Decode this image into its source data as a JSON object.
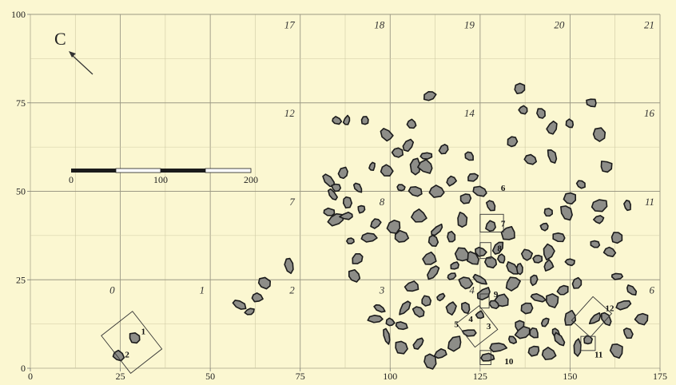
{
  "map": {
    "background": "#fbf7d1",
    "grid_color": "#cfcaa4",
    "major_line_color": "#9b9884",
    "feature_fill": "#8d8d88",
    "feature_outline": "#1b1b1b",
    "north_letter": "C",
    "x_ticks": [
      "0",
      "25",
      "50",
      "75",
      "100",
      "125",
      "150",
      "175"
    ],
    "y_ticks": [
      "0",
      "25",
      "50",
      "75",
      "100"
    ],
    "scale_bar": {
      "labels": [
        "0",
        "100",
        "200"
      ]
    },
    "grid_numbers": [
      {
        "id": "0",
        "x": 25,
        "y": 22
      },
      {
        "id": "1",
        "x": 50,
        "y": 22
      },
      {
        "id": "2",
        "x": 75,
        "y": 22
      },
      {
        "id": "3",
        "x": 100,
        "y": 22
      },
      {
        "id": "4",
        "x": 125,
        "y": 22
      },
      {
        "id": "6",
        "x": 175,
        "y": 22
      },
      {
        "id": "7",
        "x": 75,
        "y": 47
      },
      {
        "id": "8",
        "x": 100,
        "y": 47
      },
      {
        "id": "11",
        "x": 175,
        "y": 47
      },
      {
        "id": "12",
        "x": 75,
        "y": 72
      },
      {
        "id": "14",
        "x": 125,
        "y": 72
      },
      {
        "id": "16",
        "x": 175,
        "y": 72
      },
      {
        "id": "17",
        "x": 75,
        "y": 97
      },
      {
        "id": "18",
        "x": 100,
        "y": 97
      },
      {
        "id": "19",
        "x": 125,
        "y": 97
      },
      {
        "id": "20",
        "x": 150,
        "y": 97
      },
      {
        "id": "21",
        "x": 175,
        "y": 97
      }
    ],
    "labeled_features": [
      {
        "id": "1",
        "x": 29,
        "y": 10.5
      },
      {
        "id": "2",
        "x": 24.5,
        "y": 4
      },
      {
        "id": "3",
        "x": 125,
        "y": 12
      },
      {
        "id": "4",
        "x": 120,
        "y": 14
      },
      {
        "id": "5",
        "x": 116,
        "y": 12.5
      },
      {
        "id": "6",
        "x": 129,
        "y": 51
      },
      {
        "id": "7",
        "x": 129,
        "y": 41
      },
      {
        "id": "8",
        "x": 128,
        "y": 34
      },
      {
        "id": "9",
        "x": 127,
        "y": 21
      },
      {
        "id": "10",
        "x": 130,
        "y": 2
      },
      {
        "id": "11",
        "x": 155,
        "y": 4
      },
      {
        "id": "12",
        "x": 158,
        "y": 17
      }
    ],
    "features": [
      [
        29,
        8.5
      ],
      [
        24.5,
        3.5
      ],
      [
        61,
        16
      ],
      [
        58,
        18
      ],
      [
        63,
        20
      ],
      [
        65,
        24
      ],
      [
        72,
        29
      ],
      [
        83,
        53
      ],
      [
        84,
        49
      ],
      [
        85,
        51
      ],
      [
        88,
        47
      ],
      [
        87,
        55
      ],
      [
        91,
        51
      ],
      [
        95,
        57
      ],
      [
        99,
        56
      ],
      [
        103,
        51
      ],
      [
        107,
        50
      ],
      [
        107,
        57
      ],
      [
        110,
        60
      ],
      [
        113,
        50
      ],
      [
        117,
        53
      ],
      [
        121,
        48
      ],
      [
        125,
        50
      ],
      [
        123,
        54
      ],
      [
        128,
        46
      ],
      [
        128,
        40
      ],
      [
        125,
        33
      ],
      [
        123,
        31
      ],
      [
        128,
        30
      ],
      [
        131,
        31
      ],
      [
        134,
        28
      ],
      [
        136,
        28
      ],
      [
        138,
        32
      ],
      [
        141,
        31
      ],
      [
        144,
        33
      ],
      [
        147,
        37
      ],
      [
        143,
        40
      ],
      [
        144,
        44
      ],
      [
        149,
        44
      ],
      [
        150,
        48
      ],
      [
        153,
        52
      ],
      [
        158,
        42
      ],
      [
        158,
        46
      ],
      [
        163,
        37
      ],
      [
        166,
        46
      ],
      [
        161,
        33
      ],
      [
        163,
        26
      ],
      [
        167,
        22
      ],
      [
        165,
        18
      ],
      [
        170,
        14
      ],
      [
        166,
        10
      ],
      [
        160,
        14
      ],
      [
        150,
        14
      ],
      [
        146,
        10
      ],
      [
        143,
        13
      ],
      [
        140,
        10
      ],
      [
        136,
        12
      ],
      [
        138,
        17
      ],
      [
        141,
        20
      ],
      [
        145,
        19
      ],
      [
        148,
        22
      ],
      [
        152,
        24
      ],
      [
        150,
        30
      ],
      [
        144,
        29
      ],
      [
        140,
        25
      ],
      [
        134,
        24
      ],
      [
        131,
        19
      ],
      [
        129,
        18
      ],
      [
        126,
        21
      ],
      [
        121,
        17
      ],
      [
        117,
        17
      ],
      [
        114,
        20
      ],
      [
        110,
        19
      ],
      [
        108,
        16
      ],
      [
        106,
        23
      ],
      [
        104,
        17
      ],
      [
        103,
        12
      ],
      [
        99,
        9
      ],
      [
        103,
        6
      ],
      [
        108,
        7
      ],
      [
        111,
        2
      ],
      [
        114,
        4
      ],
      [
        118,
        7
      ],
      [
        122,
        10
      ],
      [
        125,
        15
      ],
      [
        127,
        3
      ],
      [
        130,
        6
      ],
      [
        134,
        8
      ],
      [
        137,
        10
      ],
      [
        140,
        5
      ],
      [
        144,
        4
      ],
      [
        147,
        8
      ],
      [
        152,
        6
      ],
      [
        155,
        8
      ],
      [
        157,
        14
      ],
      [
        163,
        5
      ],
      [
        97,
        17
      ],
      [
        96,
        14
      ],
      [
        100,
        13
      ],
      [
        111,
        31
      ],
      [
        112,
        27
      ],
      [
        117,
        26
      ],
      [
        118,
        29
      ],
      [
        120,
        32
      ],
      [
        113,
        39
      ],
      [
        108,
        43
      ],
      [
        103,
        37
      ],
      [
        101,
        40
      ],
      [
        96,
        41
      ],
      [
        94,
        37
      ],
      [
        91,
        31
      ],
      [
        89,
        36
      ],
      [
        90,
        26
      ],
      [
        83,
        44
      ],
      [
        85,
        42
      ],
      [
        88,
        43
      ],
      [
        92,
        45
      ],
      [
        105,
        63
      ],
      [
        99,
        66
      ],
      [
        102,
        61
      ],
      [
        110,
        57
      ],
      [
        115,
        62
      ],
      [
        122,
        60
      ],
      [
        106,
        69
      ],
      [
        111,
        77
      ],
      [
        136,
        79
      ],
      [
        137,
        73
      ],
      [
        142,
        72
      ],
      [
        134,
        64
      ],
      [
        139,
        59
      ],
      [
        145,
        68
      ],
      [
        145,
        60
      ],
      [
        150,
        69
      ],
      [
        156,
        75
      ],
      [
        158,
        66
      ],
      [
        160,
        57
      ],
      [
        93,
        70
      ],
      [
        88,
        70
      ],
      [
        85,
        70
      ],
      [
        120,
        42
      ],
      [
        117,
        37
      ],
      [
        112,
        36
      ],
      [
        121,
        24
      ],
      [
        125,
        25
      ],
      [
        130,
        34
      ],
      [
        133,
        38
      ],
      [
        157,
        35
      ]
    ]
  }
}
